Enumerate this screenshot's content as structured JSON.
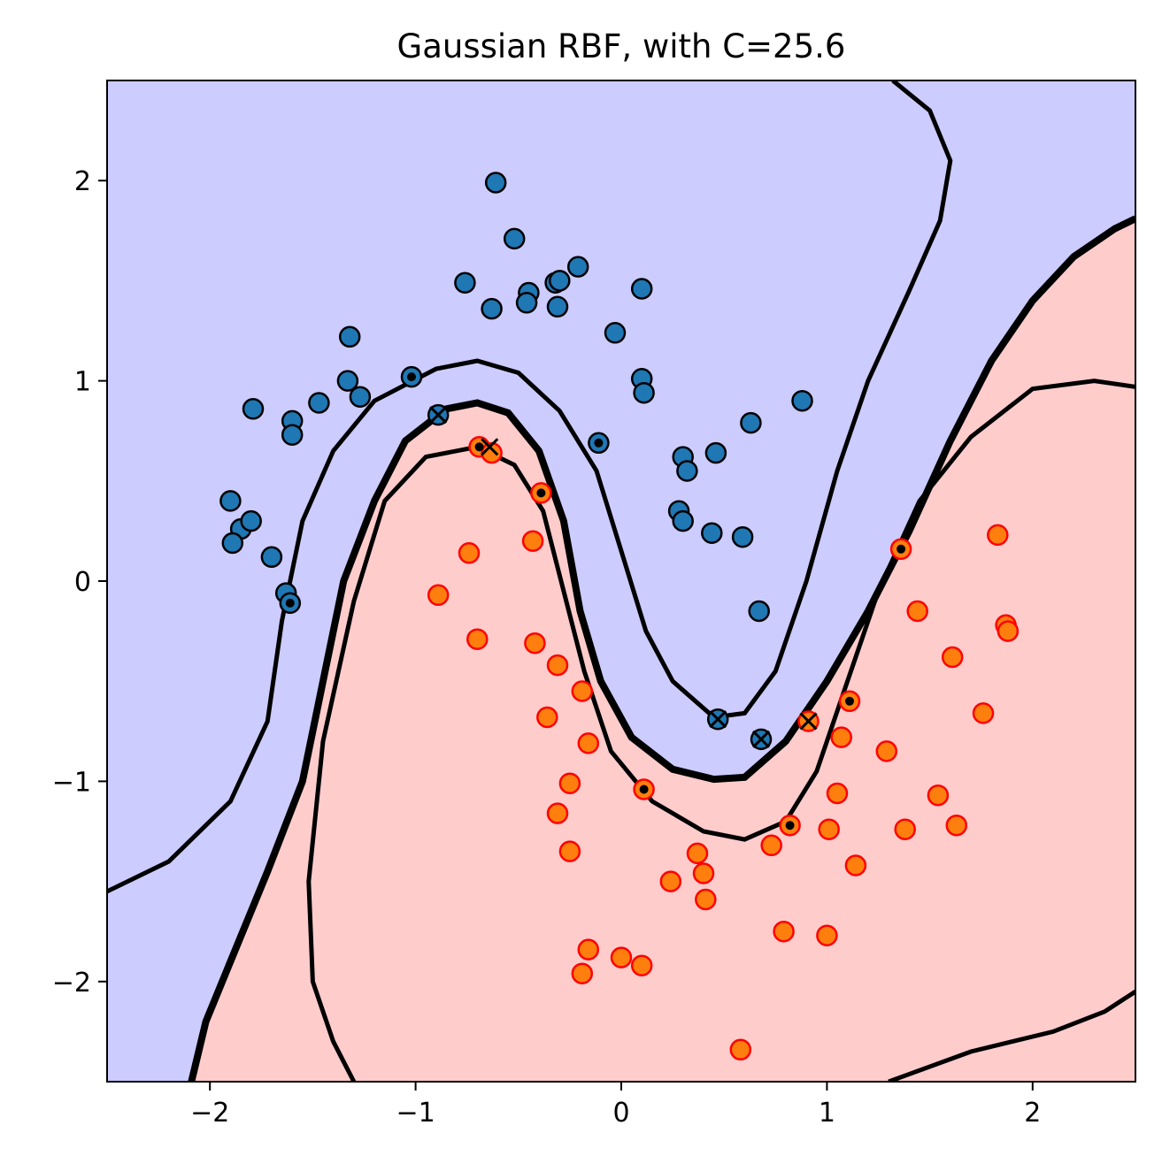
{
  "chart_data": {
    "type": "scatter",
    "title": "Gaussian RBF, with C=25.6",
    "xlabel": "",
    "ylabel": "",
    "xlim": [
      -2.5,
      2.5
    ],
    "ylim": [
      -2.5,
      2.5
    ],
    "x_ticks": [
      -2,
      -1,
      0,
      1,
      2
    ],
    "y_ticks": [
      -2,
      -1,
      0,
      1,
      2
    ],
    "x_tick_labels": [
      "−2",
      "−1",
      "0",
      "1",
      "2"
    ],
    "y_tick_labels": [
      "−2",
      "−1",
      "0",
      "1",
      "2"
    ],
    "grid": false,
    "legend": "none",
    "colors": {
      "region_class0": "#ccccff",
      "region_class1": "#ffcccc",
      "class0_fill": "#1f77b4",
      "class0_edge": "#000000",
      "class1_fill": "#ff7f0e",
      "class1_edge": "#ff0000",
      "contour": "#000000"
    },
    "series": [
      {
        "class": 0,
        "points": [
          [
            -0.61,
            1.99
          ],
          [
            -0.52,
            1.71
          ],
          [
            -0.76,
            1.49
          ],
          [
            -0.21,
            1.57
          ],
          [
            -0.32,
            1.49
          ],
          [
            -0.3,
            1.5
          ],
          [
            -0.45,
            1.44
          ],
          [
            -0.46,
            1.39
          ],
          [
            -0.31,
            1.37
          ],
          [
            -0.63,
            1.36
          ],
          [
            0.1,
            1.46
          ],
          [
            -0.03,
            1.24
          ],
          [
            -1.32,
            1.22
          ],
          [
            -1.33,
            1.0
          ],
          [
            -1.27,
            0.92
          ],
          [
            -1.47,
            0.89
          ],
          [
            -1.79,
            0.86
          ],
          [
            -1.6,
            0.8
          ],
          [
            -1.6,
            0.73
          ],
          [
            -1.02,
            1.02
          ],
          [
            0.1,
            1.01
          ],
          [
            0.11,
            0.94
          ],
          [
            -0.89,
            0.83
          ],
          [
            -0.11,
            0.69
          ],
          [
            0.88,
            0.9
          ],
          [
            0.63,
            0.79
          ],
          [
            0.46,
            0.64
          ],
          [
            0.3,
            0.62
          ],
          [
            0.32,
            0.55
          ],
          [
            0.28,
            0.35
          ],
          [
            0.3,
            0.3
          ],
          [
            0.44,
            0.24
          ],
          [
            0.59,
            0.22
          ],
          [
            -1.9,
            0.4
          ],
          [
            -1.85,
            0.26
          ],
          [
            -1.8,
            0.3
          ],
          [
            -1.89,
            0.19
          ],
          [
            -1.7,
            0.12
          ],
          [
            -1.63,
            -0.06
          ],
          [
            -1.61,
            -0.11
          ],
          [
            0.67,
            -0.15
          ],
          [
            0.47,
            -0.69
          ],
          [
            0.68,
            -0.79
          ]
        ]
      },
      {
        "class": 1,
        "points": [
          [
            -0.69,
            0.67
          ],
          [
            -0.63,
            0.64
          ],
          [
            -0.39,
            0.44
          ],
          [
            -0.43,
            0.2
          ],
          [
            -0.74,
            0.14
          ],
          [
            -0.89,
            -0.07
          ],
          [
            -0.7,
            -0.29
          ],
          [
            -0.42,
            -0.31
          ],
          [
            -0.31,
            -0.42
          ],
          [
            -0.19,
            -0.55
          ],
          [
            -0.36,
            -0.68
          ],
          [
            -0.16,
            -0.81
          ],
          [
            -0.25,
            -1.01
          ],
          [
            -0.31,
            -1.16
          ],
          [
            -0.25,
            -1.35
          ],
          [
            0.11,
            -1.04
          ],
          [
            0.37,
            -1.36
          ],
          [
            0.4,
            -1.46
          ],
          [
            0.24,
            -1.5
          ],
          [
            0.41,
            -1.59
          ],
          [
            -0.16,
            -1.84
          ],
          [
            -0.19,
            -1.96
          ],
          [
            0.0,
            -1.88
          ],
          [
            0.1,
            -1.92
          ],
          [
            0.58,
            -2.34
          ],
          [
            0.79,
            -1.75
          ],
          [
            1.0,
            -1.77
          ],
          [
            0.73,
            -1.32
          ],
          [
            0.82,
            -1.22
          ],
          [
            1.01,
            -1.24
          ],
          [
            1.14,
            -1.42
          ],
          [
            1.05,
            -1.06
          ],
          [
            1.07,
            -0.78
          ],
          [
            0.91,
            -0.7
          ],
          [
            1.11,
            -0.6
          ],
          [
            1.29,
            -0.85
          ],
          [
            1.38,
            -1.24
          ],
          [
            1.54,
            -1.07
          ],
          [
            1.63,
            -1.22
          ],
          [
            1.36,
            0.16
          ],
          [
            1.44,
            -0.15
          ],
          [
            1.61,
            -0.38
          ],
          [
            1.76,
            -0.66
          ],
          [
            1.83,
            0.23
          ],
          [
            1.87,
            -0.22
          ],
          [
            1.88,
            -0.25
          ]
        ]
      }
    ],
    "support_vectors_dot": [
      [
        -1.02,
        1.02
      ],
      [
        -0.11,
        0.69
      ],
      [
        -1.61,
        -0.11
      ],
      [
        -0.69,
        0.67
      ],
      [
        -0.39,
        0.44
      ],
      [
        0.11,
        -1.04
      ],
      [
        0.82,
        -1.22
      ],
      [
        1.11,
        -0.6
      ],
      [
        1.36,
        0.16
      ]
    ],
    "support_vectors_x": [
      [
        -0.89,
        0.83
      ],
      [
        0.47,
        -0.69
      ],
      [
        0.68,
        -0.79
      ],
      [
        -0.64,
        0.67
      ],
      [
        0.91,
        -0.7
      ]
    ],
    "decision_boundary": [
      [
        -2.09,
        -2.5
      ],
      [
        -2.02,
        -2.2
      ],
      [
        -1.9,
        -1.9
      ],
      [
        -1.72,
        -1.45
      ],
      [
        -1.55,
        -1.0
      ],
      [
        -1.45,
        -0.5
      ],
      [
        -1.35,
        0.0
      ],
      [
        -1.2,
        0.4
      ],
      [
        -1.05,
        0.7
      ],
      [
        -0.85,
        0.86
      ],
      [
        -0.7,
        0.89
      ],
      [
        -0.55,
        0.84
      ],
      [
        -0.4,
        0.65
      ],
      [
        -0.28,
        0.3
      ],
      [
        -0.2,
        -0.15
      ],
      [
        -0.1,
        -0.5
      ],
      [
        0.05,
        -0.78
      ],
      [
        0.25,
        -0.94
      ],
      [
        0.45,
        -0.99
      ],
      [
        0.6,
        -0.98
      ],
      [
        0.8,
        -0.8
      ],
      [
        1.0,
        -0.5
      ],
      [
        1.2,
        -0.15
      ],
      [
        1.4,
        0.25
      ],
      [
        1.6,
        0.7
      ],
      [
        1.8,
        1.1
      ],
      [
        2.0,
        1.4
      ],
      [
        2.2,
        1.62
      ],
      [
        2.4,
        1.76
      ],
      [
        2.5,
        1.81
      ]
    ],
    "margin_upper": [
      [
        -2.5,
        -1.55
      ],
      [
        -2.2,
        -1.4
      ],
      [
        -1.9,
        -1.1
      ],
      [
        -1.72,
        -0.7
      ],
      [
        -1.65,
        -0.2
      ],
      [
        -1.55,
        0.3
      ],
      [
        -1.4,
        0.65
      ],
      [
        -1.2,
        0.9
      ],
      [
        -0.9,
        1.06
      ],
      [
        -0.7,
        1.1
      ],
      [
        -0.5,
        1.04
      ],
      [
        -0.3,
        0.85
      ],
      [
        -0.12,
        0.55
      ],
      [
        0.0,
        0.15
      ],
      [
        0.12,
        -0.25
      ],
      [
        0.25,
        -0.5
      ],
      [
        0.45,
        -0.68
      ],
      [
        0.6,
        -0.66
      ],
      [
        0.75,
        -0.45
      ],
      [
        0.9,
        0.0
      ],
      [
        1.05,
        0.55
      ],
      [
        1.2,
        1.0
      ],
      [
        1.4,
        1.45
      ],
      [
        1.55,
        1.8
      ],
      [
        1.6,
        2.1
      ],
      [
        1.5,
        2.35
      ],
      [
        1.32,
        2.5
      ]
    ],
    "margin_lower": [
      [
        -1.3,
        -2.5
      ],
      [
        -1.4,
        -2.3
      ],
      [
        -1.5,
        -2.0
      ],
      [
        -1.52,
        -1.5
      ],
      [
        -1.45,
        -0.8
      ],
      [
        -1.3,
        -0.1
      ],
      [
        -1.15,
        0.4
      ],
      [
        -0.95,
        0.62
      ],
      [
        -0.7,
        0.67
      ],
      [
        -0.52,
        0.58
      ],
      [
        -0.38,
        0.35
      ],
      [
        -0.28,
        -0.05
      ],
      [
        -0.18,
        -0.45
      ],
      [
        -0.05,
        -0.85
      ],
      [
        0.15,
        -1.1
      ],
      [
        0.4,
        -1.25
      ],
      [
        0.6,
        -1.29
      ],
      [
        0.8,
        -1.2
      ],
      [
        0.95,
        -0.95
      ],
      [
        1.1,
        -0.5
      ],
      [
        1.25,
        -0.05
      ],
      [
        1.45,
        0.4
      ],
      [
        1.7,
        0.72
      ],
      [
        2.0,
        0.96
      ],
      [
        2.3,
        1.0
      ],
      [
        2.5,
        0.97
      ]
    ],
    "margin_lower_corner": [
      [
        1.3,
        -2.5
      ],
      [
        1.7,
        -2.35
      ],
      [
        2.1,
        -2.25
      ],
      [
        2.35,
        -2.15
      ],
      [
        2.5,
        -2.05
      ]
    ]
  }
}
